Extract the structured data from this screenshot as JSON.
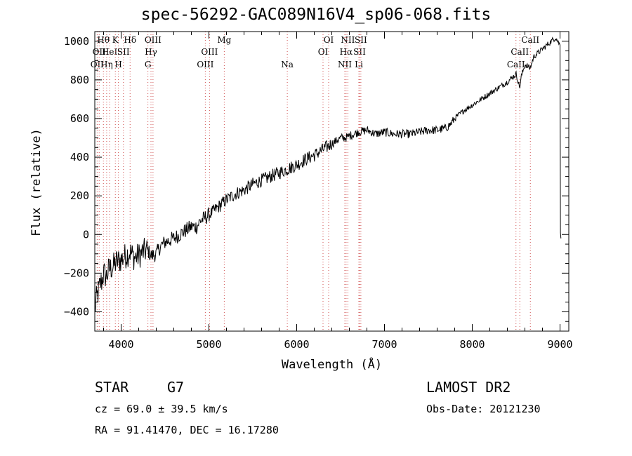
{
  "chart_data": {
    "type": "line",
    "title": "spec-56292-GAC089N16V4_sp06-068.fits",
    "xlabel": "Wavelength (Å)",
    "ylabel": "Flux (relative)",
    "xlim": [
      3700,
      9100
    ],
    "ylim": [
      -500,
      1050
    ],
    "x_ticks": [
      "4000",
      "5000",
      "6000",
      "7000",
      "8000",
      "9000"
    ],
    "y_ticks": [
      "1000",
      "800",
      "600",
      "400",
      "200",
      "0",
      "−200",
      "−400"
    ],
    "series": [
      {
        "x": [
          3700,
          3720,
          3740,
          3760,
          3780,
          3800,
          3830,
          3860,
          3900,
          3950,
          4000,
          4050,
          4100,
          4150,
          4200,
          4250,
          4300,
          4340,
          4400,
          4450,
          4500,
          4600,
          4700,
          4800,
          4860,
          4900,
          5000,
          5100,
          5200,
          5300,
          5400,
          5500,
          5600,
          5700,
          5800,
          5900,
          6000,
          6100,
          6200,
          6300,
          6400,
          6500,
          6560,
          6600,
          6700,
          6800,
          6900,
          7000,
          7100,
          7200,
          7300,
          7400,
          7500,
          7600,
          7700,
          7750,
          7800,
          7900,
          8000,
          8100,
          8200,
          8300,
          8400,
          8500,
          8540,
          8560,
          8600,
          8660,
          8700,
          8800,
          8900,
          8950,
          9000,
          9010
        ],
        "y": [
          -390,
          -330,
          -300,
          -260,
          -240,
          -200,
          -220,
          -180,
          -170,
          -140,
          -130,
          -110,
          -90,
          -120,
          -110,
          -90,
          -80,
          -110,
          -100,
          -60,
          -40,
          -20,
          10,
          40,
          40,
          70,
          100,
          140,
          180,
          210,
          230,
          260,
          280,
          300,
          320,
          340,
          360,
          390,
          410,
          440,
          470,
          500,
          500,
          510,
          530,
          540,
          520,
          530,
          520,
          520,
          520,
          530,
          540,
          540,
          550,
          570,
          600,
          640,
          670,
          700,
          730,
          760,
          790,
          830,
          760,
          820,
          880,
          860,
          920,
          960,
          1000,
          1020,
          980,
          10
        ]
      }
    ],
    "lines": [
      {
        "wavelength": 3727,
        "label": "OII",
        "row": 2
      },
      {
        "wavelength": 3750,
        "label": "OII",
        "row": 1
      },
      {
        "wavelength": 3798,
        "label": "Hθ",
        "row": 0
      },
      {
        "wavelength": 3835,
        "label": "Hη",
        "row": 2
      },
      {
        "wavelength": 3869,
        "label": "HeI",
        "row": 1
      },
      {
        "wavelength": 3934,
        "label": "K",
        "row": 0
      },
      {
        "wavelength": 3969,
        "label": "H",
        "row": 2
      },
      {
        "wavelength": 4026,
        "label": "SII",
        "row": 1
      },
      {
        "wavelength": 4102,
        "label": "Hδ",
        "row": 0
      },
      {
        "wavelength": 4305,
        "label": "G",
        "row": 2
      },
      {
        "wavelength": 4340,
        "label": "Hγ",
        "row": 1
      },
      {
        "wavelength": 4363,
        "label": "OIII",
        "row": 0
      },
      {
        "wavelength": 4959,
        "label": "OIII",
        "row": 2
      },
      {
        "wavelength": 5007,
        "label": "OIII",
        "row": 1
      },
      {
        "wavelength": 5175,
        "label": "Mg",
        "row": 0
      },
      {
        "wavelength": 5893,
        "label": "Na",
        "row": 2
      },
      {
        "wavelength": 6300,
        "label": "OI",
        "row": 1
      },
      {
        "wavelength": 6364,
        "label": "OI",
        "row": 0
      },
      {
        "wavelength": 6548,
        "label": "NII",
        "row": 2
      },
      {
        "wavelength": 6563,
        "label": "Hα",
        "row": 1
      },
      {
        "wavelength": 6583,
        "label": "NII",
        "row": 0
      },
      {
        "wavelength": 6708,
        "label": "Li",
        "row": 2
      },
      {
        "wavelength": 6716,
        "label": "SII",
        "row": 1
      },
      {
        "wavelength": 6731,
        "label": "SII",
        "row": 0
      },
      {
        "wavelength": 8498,
        "label": "CaII",
        "row": 2
      },
      {
        "wavelength": 8542,
        "label": "CaII",
        "row": 1
      },
      {
        "wavelength": 8662,
        "label": "CaII",
        "row": 0
      }
    ]
  },
  "info": {
    "object_class": "STAR",
    "subclass": "G7",
    "redshift": "cz = 69.0 ± 39.5 km/s",
    "coords": "RA =  91.41470, DEC =  16.17280",
    "survey": "LAMOST DR2",
    "obs_date": "Obs-Date: 20121230"
  }
}
